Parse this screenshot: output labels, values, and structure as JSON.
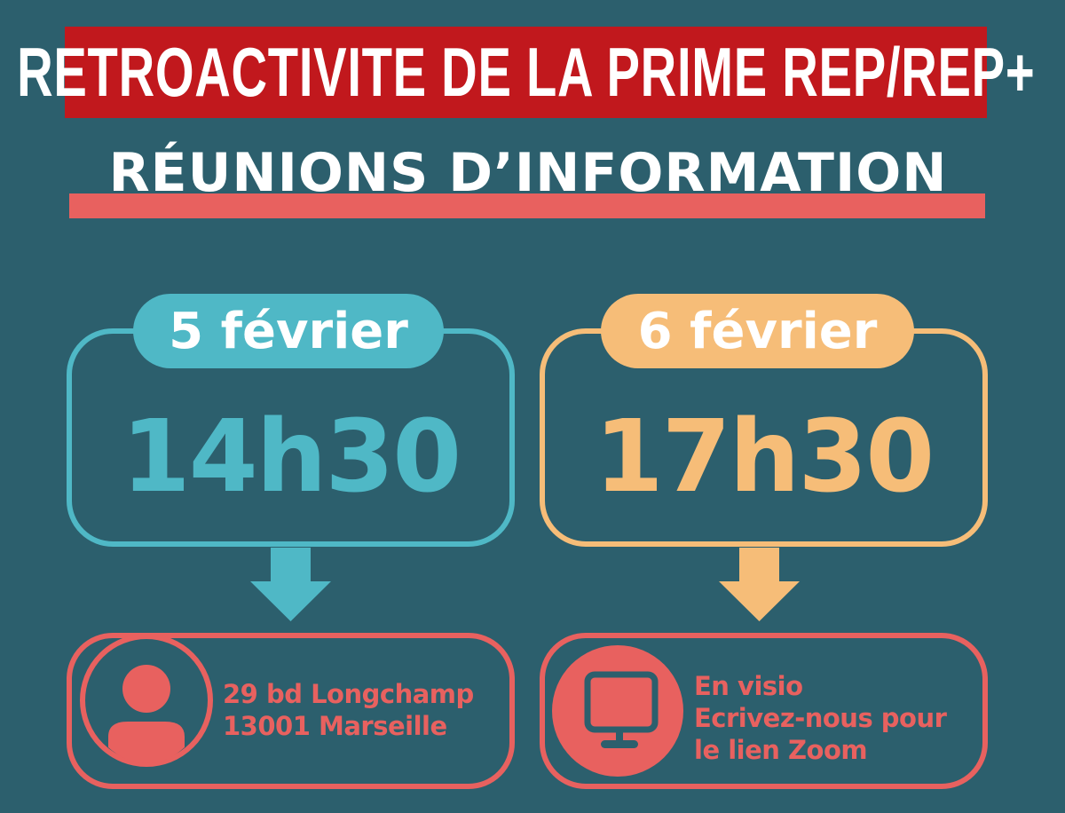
{
  "title": "RETROACTIVITE DE LA PRIME REP/REP+",
  "subtitle": "RÉUNIONS D’INFORMATION",
  "colors": {
    "background": "#2c5f6d",
    "banner": "#c1181d",
    "coral": "#e8615f",
    "teal": "#4fb8c6",
    "orange": "#f6bd78"
  },
  "sessions": [
    {
      "date": "5 février",
      "time": "14h30",
      "icon": "person-icon",
      "info": [
        "29 bd Longchamp",
        "13001 Marseille"
      ]
    },
    {
      "date": "6 février",
      "time": "17h30",
      "icon": "monitor-icon",
      "info": [
        "En visio",
        "Ecrivez-nous pour",
        "le lien Zoom"
      ]
    }
  ]
}
